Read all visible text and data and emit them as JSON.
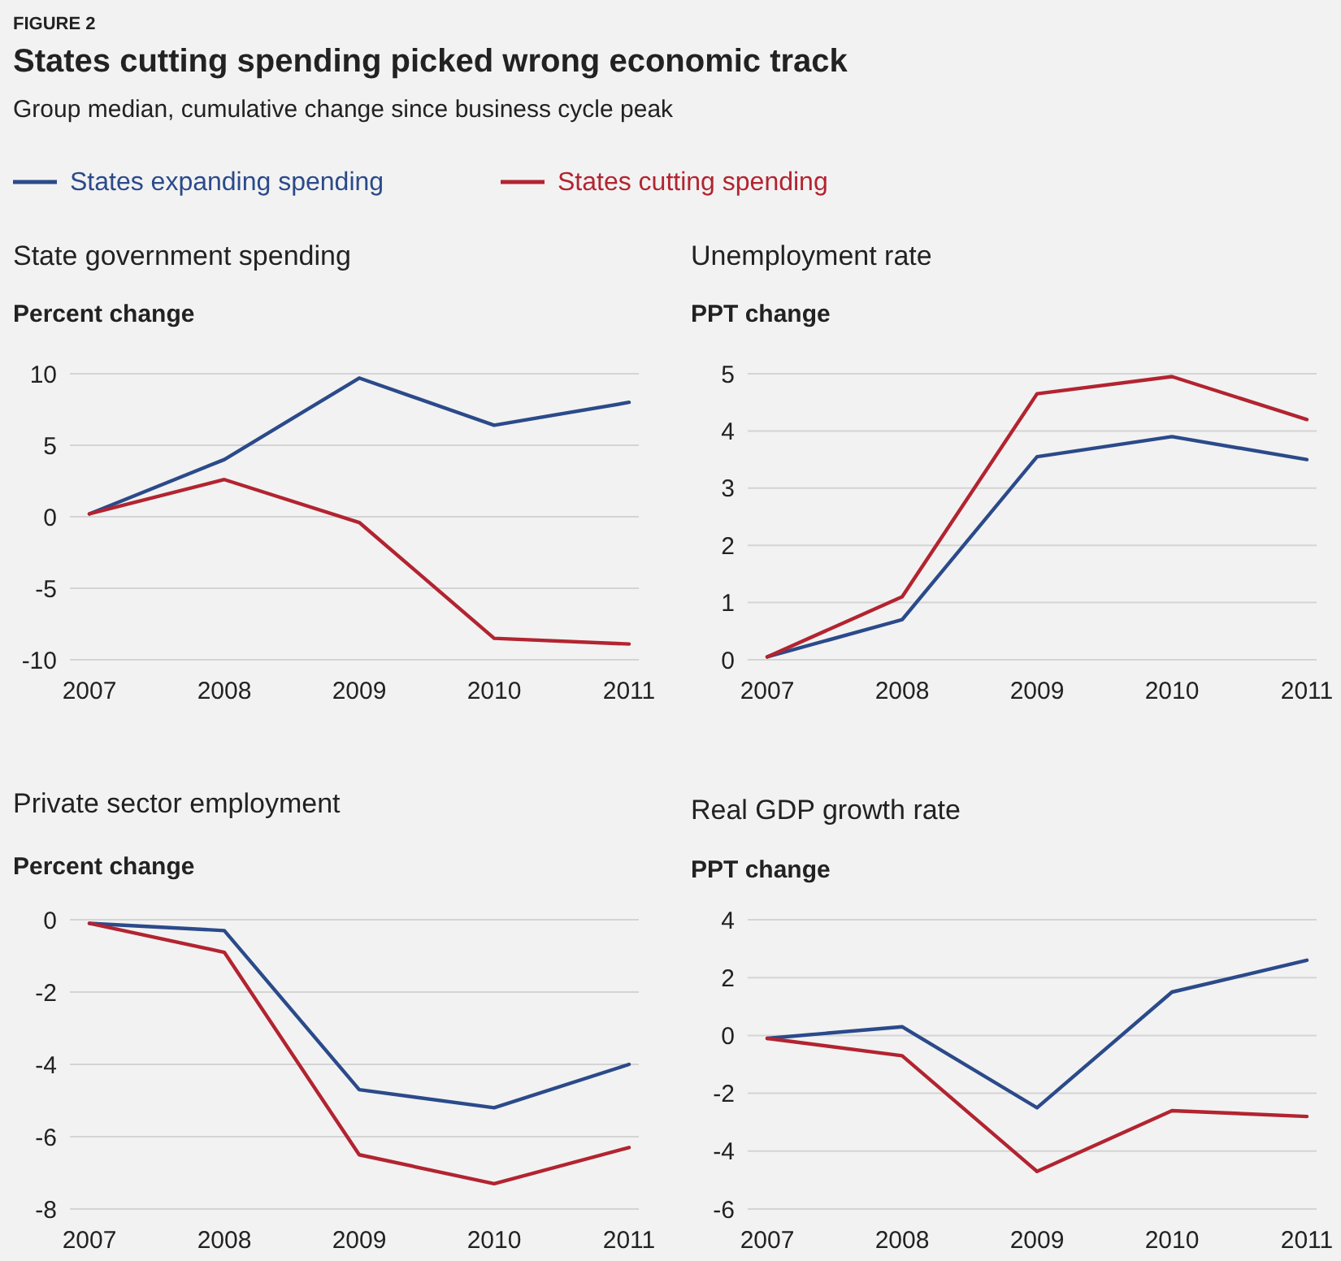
{
  "chart_data": [
    {
      "type": "line",
      "title": "State government spending",
      "ylabel": "Percent change",
      "annotations": [
        "FIGURE 2",
        "States cutting spending picked wrong economic track",
        "Group median, cumulative change since business cycle peak"
      ],
      "categories": [
        "2007",
        "2008",
        "2009",
        "2010",
        "2011"
      ],
      "legend": "top",
      "grid": "y",
      "ylim": [
        -10,
        10
      ],
      "yticks": [
        -10,
        -5,
        0,
        5,
        10
      ],
      "series": [
        {
          "name": "States expanding spending",
          "color": "#2b4a8a",
          "values": [
            0.2,
            4,
            9.7,
            6.4,
            8
          ]
        },
        {
          "name": "States cutting spending",
          "color": "#b22430",
          "values": [
            0.2,
            2.6,
            -0.4,
            -8.5,
            -8.9
          ]
        }
      ]
    },
    {
      "type": "line",
      "title": "Unemployment rate",
      "ylabel": "PPT change",
      "categories": [
        "2007",
        "2008",
        "2009",
        "2010",
        "2011"
      ],
      "grid": "y",
      "ylim": [
        0,
        5
      ],
      "yticks": [
        0,
        1,
        2,
        3,
        4,
        5
      ],
      "series": [
        {
          "color": "#2b4a8a",
          "values": [
            0.05,
            0.7,
            3.55,
            3.9,
            3.5
          ]
        },
        {
          "color": "#b22430",
          "values": [
            0.05,
            1.1,
            4.65,
            4.95,
            4.2
          ]
        }
      ]
    },
    {
      "type": "line",
      "title": "Private sector employment",
      "ylabel": "Percent change",
      "categories": [
        "2007",
        "2008",
        "2009",
        "2010",
        "2011"
      ],
      "grid": "y",
      "ylim": [
        -8,
        0
      ],
      "yticks": [
        -8,
        -6,
        -4,
        -2,
        0
      ],
      "series": [
        {
          "color": "#2b4a8a",
          "values": [
            -0.1,
            -0.3,
            -4.7,
            -5.2,
            -4.0
          ]
        },
        {
          "color": "#b22430",
          "values": [
            -0.1,
            -0.9,
            -6.5,
            -7.3,
            -6.3
          ]
        }
      ]
    },
    {
      "type": "line",
      "title": "Real GDP growth rate",
      "ylabel": "PPT change",
      "categories": [
        "2007",
        "2008",
        "2009",
        "2010",
        "2011"
      ],
      "grid": "y",
      "ylim": [
        -6,
        4
      ],
      "yticks": [
        -6,
        -4,
        -2,
        0,
        2,
        4
      ],
      "series": [
        {
          "color": "#2b4a8a",
          "values": [
            -0.1,
            0.3,
            -2.5,
            1.5,
            2.6
          ]
        },
        {
          "color": "#b22430",
          "values": [
            -0.1,
            -0.7,
            -4.7,
            -2.6,
            -2.8
          ]
        }
      ]
    }
  ]
}
